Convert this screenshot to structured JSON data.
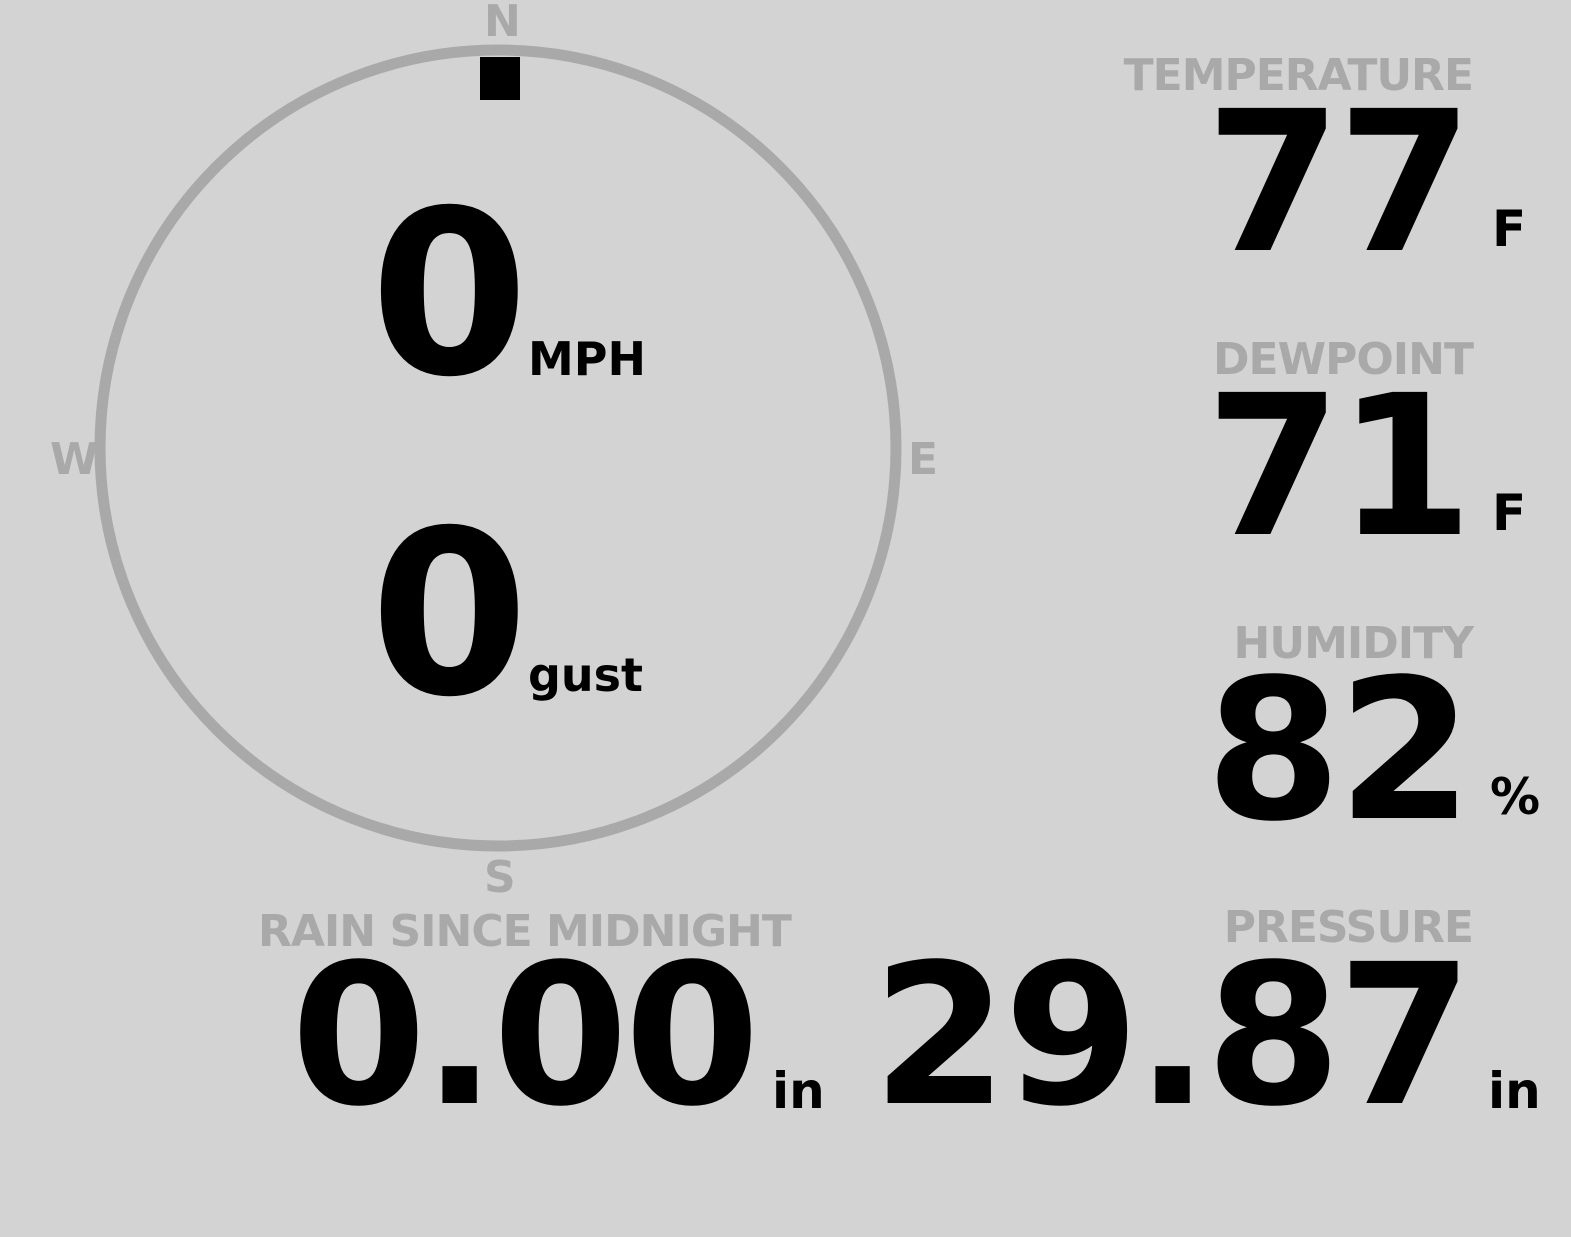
{
  "wind": {
    "compass": {
      "north": "N",
      "south": "S",
      "east": "E",
      "west": "W"
    },
    "direction_deg": 0,
    "speed": "0",
    "speed_unit": "MPH",
    "gust": "0",
    "gust_unit": "gust"
  },
  "temperature": {
    "label": "TEMPERATURE",
    "value": "77",
    "unit": "F"
  },
  "dewpoint": {
    "label": "DEWPOINT",
    "value": "71",
    "unit": "F"
  },
  "humidity": {
    "label": "HUMIDITY",
    "value": "82",
    "unit": "%"
  },
  "rain": {
    "label": "RAIN SINCE MIDNIGHT",
    "value": "0.00",
    "unit": "in"
  },
  "pressure": {
    "label": "PRESSURE",
    "value": "29.87",
    "unit": "in"
  },
  "colors": {
    "background": "#d3d3d3",
    "muted": "#a9a9a9",
    "text": "#000000"
  }
}
